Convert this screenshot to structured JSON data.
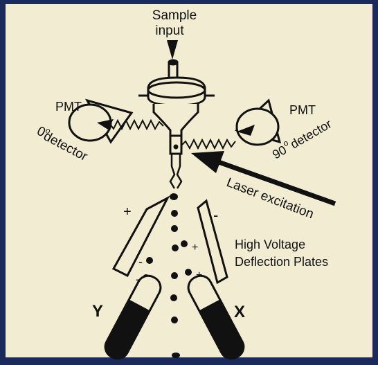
{
  "labels": {
    "sample_line1": "Sample",
    "sample_line2": "input",
    "pmt_left": "PMT",
    "pmt_right": "PMT",
    "det0_num": "0",
    "det0_deg": "o",
    "det0_word": "detector",
    "det90_num": "90",
    "det90_deg": "o",
    "det90_word": "detector",
    "laser": "Laser excitation",
    "plates_line1": "High Voltage",
    "plates_line2": "Deflection Plates",
    "plus_plate": "+",
    "minus_plate": "-",
    "y_label": "Y",
    "x_label": "X",
    "drop_plus_1": "+",
    "drop_plus_2": "+",
    "drop_minus_1": "-",
    "drop_minus_2": "-"
  },
  "colors": {
    "background": "#f1ecd2",
    "ink": "#111111",
    "frame": "#1a2a5a"
  }
}
